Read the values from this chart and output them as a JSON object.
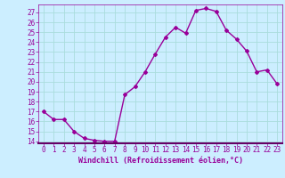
{
  "x": [
    0,
    1,
    2,
    3,
    4,
    5,
    6,
    7,
    8,
    9,
    10,
    11,
    12,
    13,
    14,
    15,
    16,
    17,
    18,
    19,
    20,
    21,
    22,
    23
  ],
  "y": [
    17,
    16.2,
    16.2,
    15.0,
    14.3,
    14.1,
    14.0,
    14.0,
    18.7,
    19.5,
    21.0,
    22.8,
    24.5,
    25.5,
    24.9,
    27.2,
    27.4,
    27.1,
    25.2,
    24.3,
    23.1,
    21.0,
    21.2,
    19.8
  ],
  "line_color": "#990099",
  "marker": "D",
  "marker_size": 2.0,
  "linewidth": 1.0,
  "bg_color": "#cceeff",
  "grid_color": "#aadddd",
  "xlabel": "Windchill (Refroidissement éolien,°C)",
  "xlabel_fontsize": 6.0,
  "tick_label_color": "#990099",
  "tick_label_fontsize": 5.5,
  "xlim": [
    -0.5,
    23.5
  ],
  "ylim": [
    13.8,
    27.8
  ],
  "yticks": [
    14,
    15,
    16,
    17,
    18,
    19,
    20,
    21,
    22,
    23,
    24,
    25,
    26,
    27
  ],
  "xticks": [
    0,
    1,
    2,
    3,
    4,
    5,
    6,
    7,
    8,
    9,
    10,
    11,
    12,
    13,
    14,
    15,
    16,
    17,
    18,
    19,
    20,
    21,
    22,
    23
  ]
}
